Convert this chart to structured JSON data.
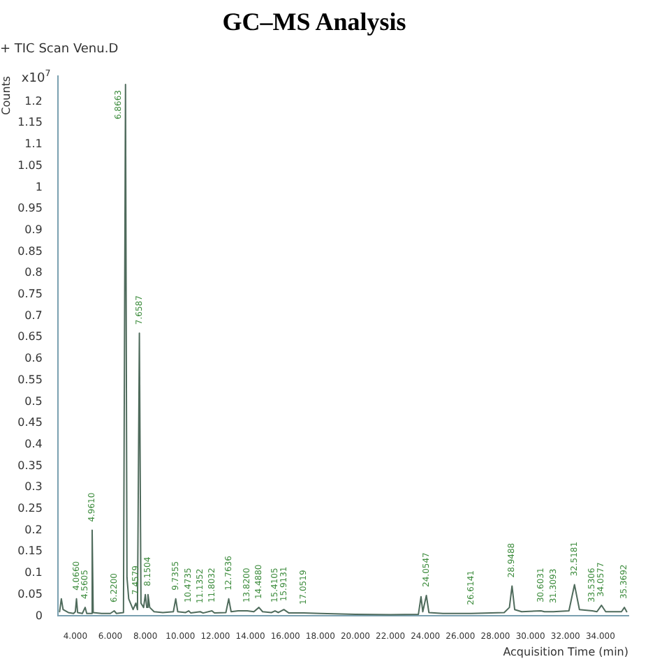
{
  "chart_data": {
    "type": "line",
    "title": "GC–MS Analysis",
    "subtitle": "+ TIC Scan Venu.D",
    "xlabel": "Acquisition Time (min)",
    "ylabel": "Counts",
    "x": [
      3.1,
      3.2,
      3.3,
      3.6,
      3.9,
      4.0,
      4.066,
      4.13,
      4.4,
      4.5605,
      4.65,
      4.9,
      4.961,
      5.02,
      5.5,
      6.0,
      6.22,
      6.35,
      6.75,
      6.8663,
      6.95,
      7.05,
      7.3,
      7.4579,
      7.55,
      7.6587,
      7.75,
      7.9,
      8.0,
      8.08,
      8.1504,
      8.25,
      8.5,
      9.0,
      9.6,
      9.7355,
      9.85,
      10.3,
      10.4735,
      10.6,
      11.1352,
      11.3,
      11.8032,
      11.95,
      12.6,
      12.7636,
      12.9,
      13.3,
      13.82,
      14.2,
      14.488,
      14.7,
      15.2,
      15.4105,
      15.6,
      15.9131,
      16.2,
      17.0519,
      18,
      20,
      22,
      23.6,
      23.75,
      23.85,
      24.0547,
      24.2,
      25,
      26.6141,
      28.5,
      28.8,
      28.9488,
      29.1,
      29.5,
      30.6031,
      30.8,
      31.3093,
      32.2,
      32.5181,
      32.8,
      33.5306,
      33.8,
      34.0577,
      34.3,
      35.2,
      35.3692,
      35.5
    ],
    "series": [
      {
        "color": "#4f6b5c",
        "values": [
          0.01,
          0.04,
          0.015,
          0.008,
          0.006,
          0.01,
          0.04,
          0.008,
          0.006,
          0.02,
          0.006,
          0.006,
          0.2,
          0.008,
          0.006,
          0.006,
          0.012,
          0.006,
          0.008,
          1.24,
          0.09,
          0.04,
          0.015,
          0.03,
          0.015,
          0.66,
          0.03,
          0.02,
          0.05,
          0.02,
          0.05,
          0.02,
          0.01,
          0.008,
          0.01,
          0.04,
          0.01,
          0.008,
          0.012,
          0.007,
          0.01,
          0.007,
          0.012,
          0.007,
          0.008,
          0.04,
          0.01,
          0.012,
          0.012,
          0.01,
          0.02,
          0.01,
          0.008,
          0.012,
          0.008,
          0.015,
          0.007,
          0.007,
          0.006,
          0.004,
          0.003,
          0.004,
          0.045,
          0.01,
          0.048,
          0.008,
          0.006,
          0.006,
          0.008,
          0.02,
          0.07,
          0.015,
          0.01,
          0.012,
          0.01,
          0.01,
          0.012,
          0.073,
          0.015,
          0.012,
          0.01,
          0.025,
          0.01,
          0.01,
          0.02,
          0.01
        ]
      }
    ],
    "xlim": [
      3,
      35.6
    ],
    "xticks": [
      {
        "value": 4,
        "label": "4.000"
      },
      {
        "value": 6,
        "label": "6.000"
      },
      {
        "value": 8,
        "label": "8.000"
      },
      {
        "value": 10,
        "label": "10.000"
      },
      {
        "value": 12,
        "label": "12.000"
      },
      {
        "value": 14,
        "label": "14.000"
      },
      {
        "value": 16,
        "label": "16.000"
      },
      {
        "value": 18,
        "label": "18.000"
      },
      {
        "value": 20,
        "label": "20.000"
      },
      {
        "value": 22,
        "label": "22.000"
      },
      {
        "value": 24,
        "label": "24.000"
      },
      {
        "value": 26,
        "label": "26.000"
      },
      {
        "value": 28,
        "label": "28.000"
      },
      {
        "value": 30,
        "label": "30.000"
      },
      {
        "value": 32,
        "label": "32.000"
      },
      {
        "value": 34,
        "label": "34.000"
      }
    ],
    "ylim": [
      0,
      1.26
    ],
    "yticks": [
      0,
      0.05,
      0.1,
      0.15,
      0.2,
      0.25,
      0.3,
      0.35,
      0.4,
      0.45,
      0.5,
      0.55,
      0.6,
      0.65,
      0.7,
      0.75,
      0.8,
      0.85,
      0.9,
      0.95,
      1,
      1.05,
      1.1,
      1.15,
      1.2
    ],
    "grid": false,
    "legend": false,
    "marker": "none",
    "line_style": "solid",
    "annotations": [
      "x10$^{7}$",
      {
        "text": "4.0660",
        "x": 4.066,
        "y": 0.04
      },
      {
        "text": "4.5605",
        "x": 4.5605,
        "y": 0.02
      },
      {
        "text": "4.9610",
        "x": 4.961,
        "y": 0.2
      },
      {
        "text": "6.2200",
        "x": 6.22,
        "y": 0.012
      },
      {
        "text": "6.8663",
        "x": 6.8663,
        "y": 1.24
      },
      {
        "text": "7.4579",
        "x": 7.4579,
        "y": 0.03
      },
      {
        "text": "7.6587",
        "x": 7.6587,
        "y": 0.66
      },
      {
        "text": "8.1504",
        "x": 8.1504,
        "y": 0.05
      },
      {
        "text": "9.7355",
        "x": 9.7355,
        "y": 0.04
      },
      {
        "text": "10.4735",
        "x": 10.4735,
        "y": 0.012
      },
      {
        "text": "11.1352",
        "x": 11.1352,
        "y": 0.01
      },
      {
        "text": "11.8032",
        "x": 11.8032,
        "y": 0.012
      },
      {
        "text": "12.7636",
        "x": 12.7636,
        "y": 0.04
      },
      {
        "text": "13.8200",
        "x": 13.82,
        "y": 0.012
      },
      {
        "text": "14.4880",
        "x": 14.488,
        "y": 0.02
      },
      {
        "text": "15.4105",
        "x": 15.4105,
        "y": 0.012
      },
      {
        "text": "15.9131",
        "x": 15.9131,
        "y": 0.015
      },
      {
        "text": "17.0519",
        "x": 17.0519,
        "y": 0.007
      },
      {
        "text": "24.0547",
        "x": 24.0547,
        "y": 0.048
      },
      {
        "text": "26.6141",
        "x": 26.6141,
        "y": 0.006
      },
      {
        "text": "28.9488",
        "x": 28.9488,
        "y": 0.07
      },
      {
        "text": "30.6031",
        "x": 30.6031,
        "y": 0.012
      },
      {
        "text": "31.3093",
        "x": 31.3093,
        "y": 0.01
      },
      {
        "text": "32.5181",
        "x": 32.5181,
        "y": 0.073
      },
      {
        "text": "33.5306",
        "x": 33.5306,
        "y": 0.012
      },
      {
        "text": "34.0577",
        "x": 34.0577,
        "y": 0.025
      },
      {
        "text": "35.3692",
        "x": 35.3692,
        "y": 0.02
      }
    ]
  }
}
